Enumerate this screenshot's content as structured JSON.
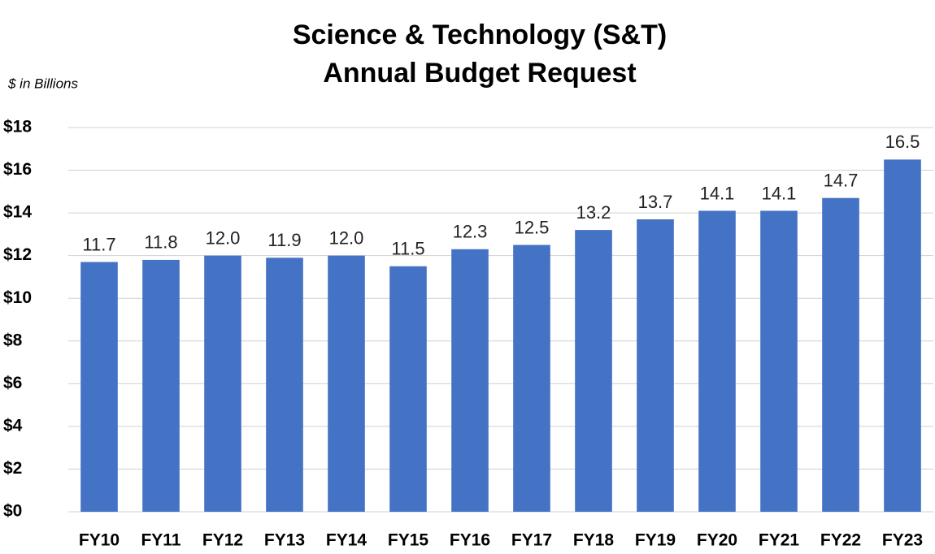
{
  "chart_data": {
    "type": "bar",
    "title": [
      "Science & Technology (S&T)",
      "Annual Budget Request"
    ],
    "subtitle": "$ in Billions",
    "categories": [
      "FY10",
      "FY11",
      "FY12",
      "FY13",
      "FY14",
      "FY15",
      "FY16",
      "FY17",
      "FY18",
      "FY19",
      "FY20",
      "FY21",
      "FY22",
      "FY23"
    ],
    "values": [
      11.7,
      11.8,
      12.0,
      11.9,
      12.0,
      11.5,
      12.3,
      12.5,
      13.2,
      13.7,
      14.1,
      14.1,
      14.7,
      16.5
    ],
    "value_labels": [
      "11.7",
      "11.8",
      "12.0",
      "11.9",
      "12.0",
      "11.5",
      "12.3",
      "12.5",
      "13.2",
      "13.7",
      "14.1",
      "14.1",
      "14.7",
      "16.5"
    ],
    "color": "#4472c4",
    "ylim": [
      0,
      18
    ],
    "yticks": [
      {
        "value": 0,
        "label": "$0"
      },
      {
        "value": 2,
        "label": "$2"
      },
      {
        "value": 4,
        "label": "$4"
      },
      {
        "value": 6,
        "label": "$6"
      },
      {
        "value": 8,
        "label": "$8"
      },
      {
        "value": 10,
        "label": "$10"
      },
      {
        "value": 12,
        "label": "$12"
      },
      {
        "value": 14,
        "label": "$14"
      },
      {
        "value": 16,
        "label": "$16"
      },
      {
        "value": 18,
        "label": "$18"
      }
    ],
    "grid": true
  }
}
